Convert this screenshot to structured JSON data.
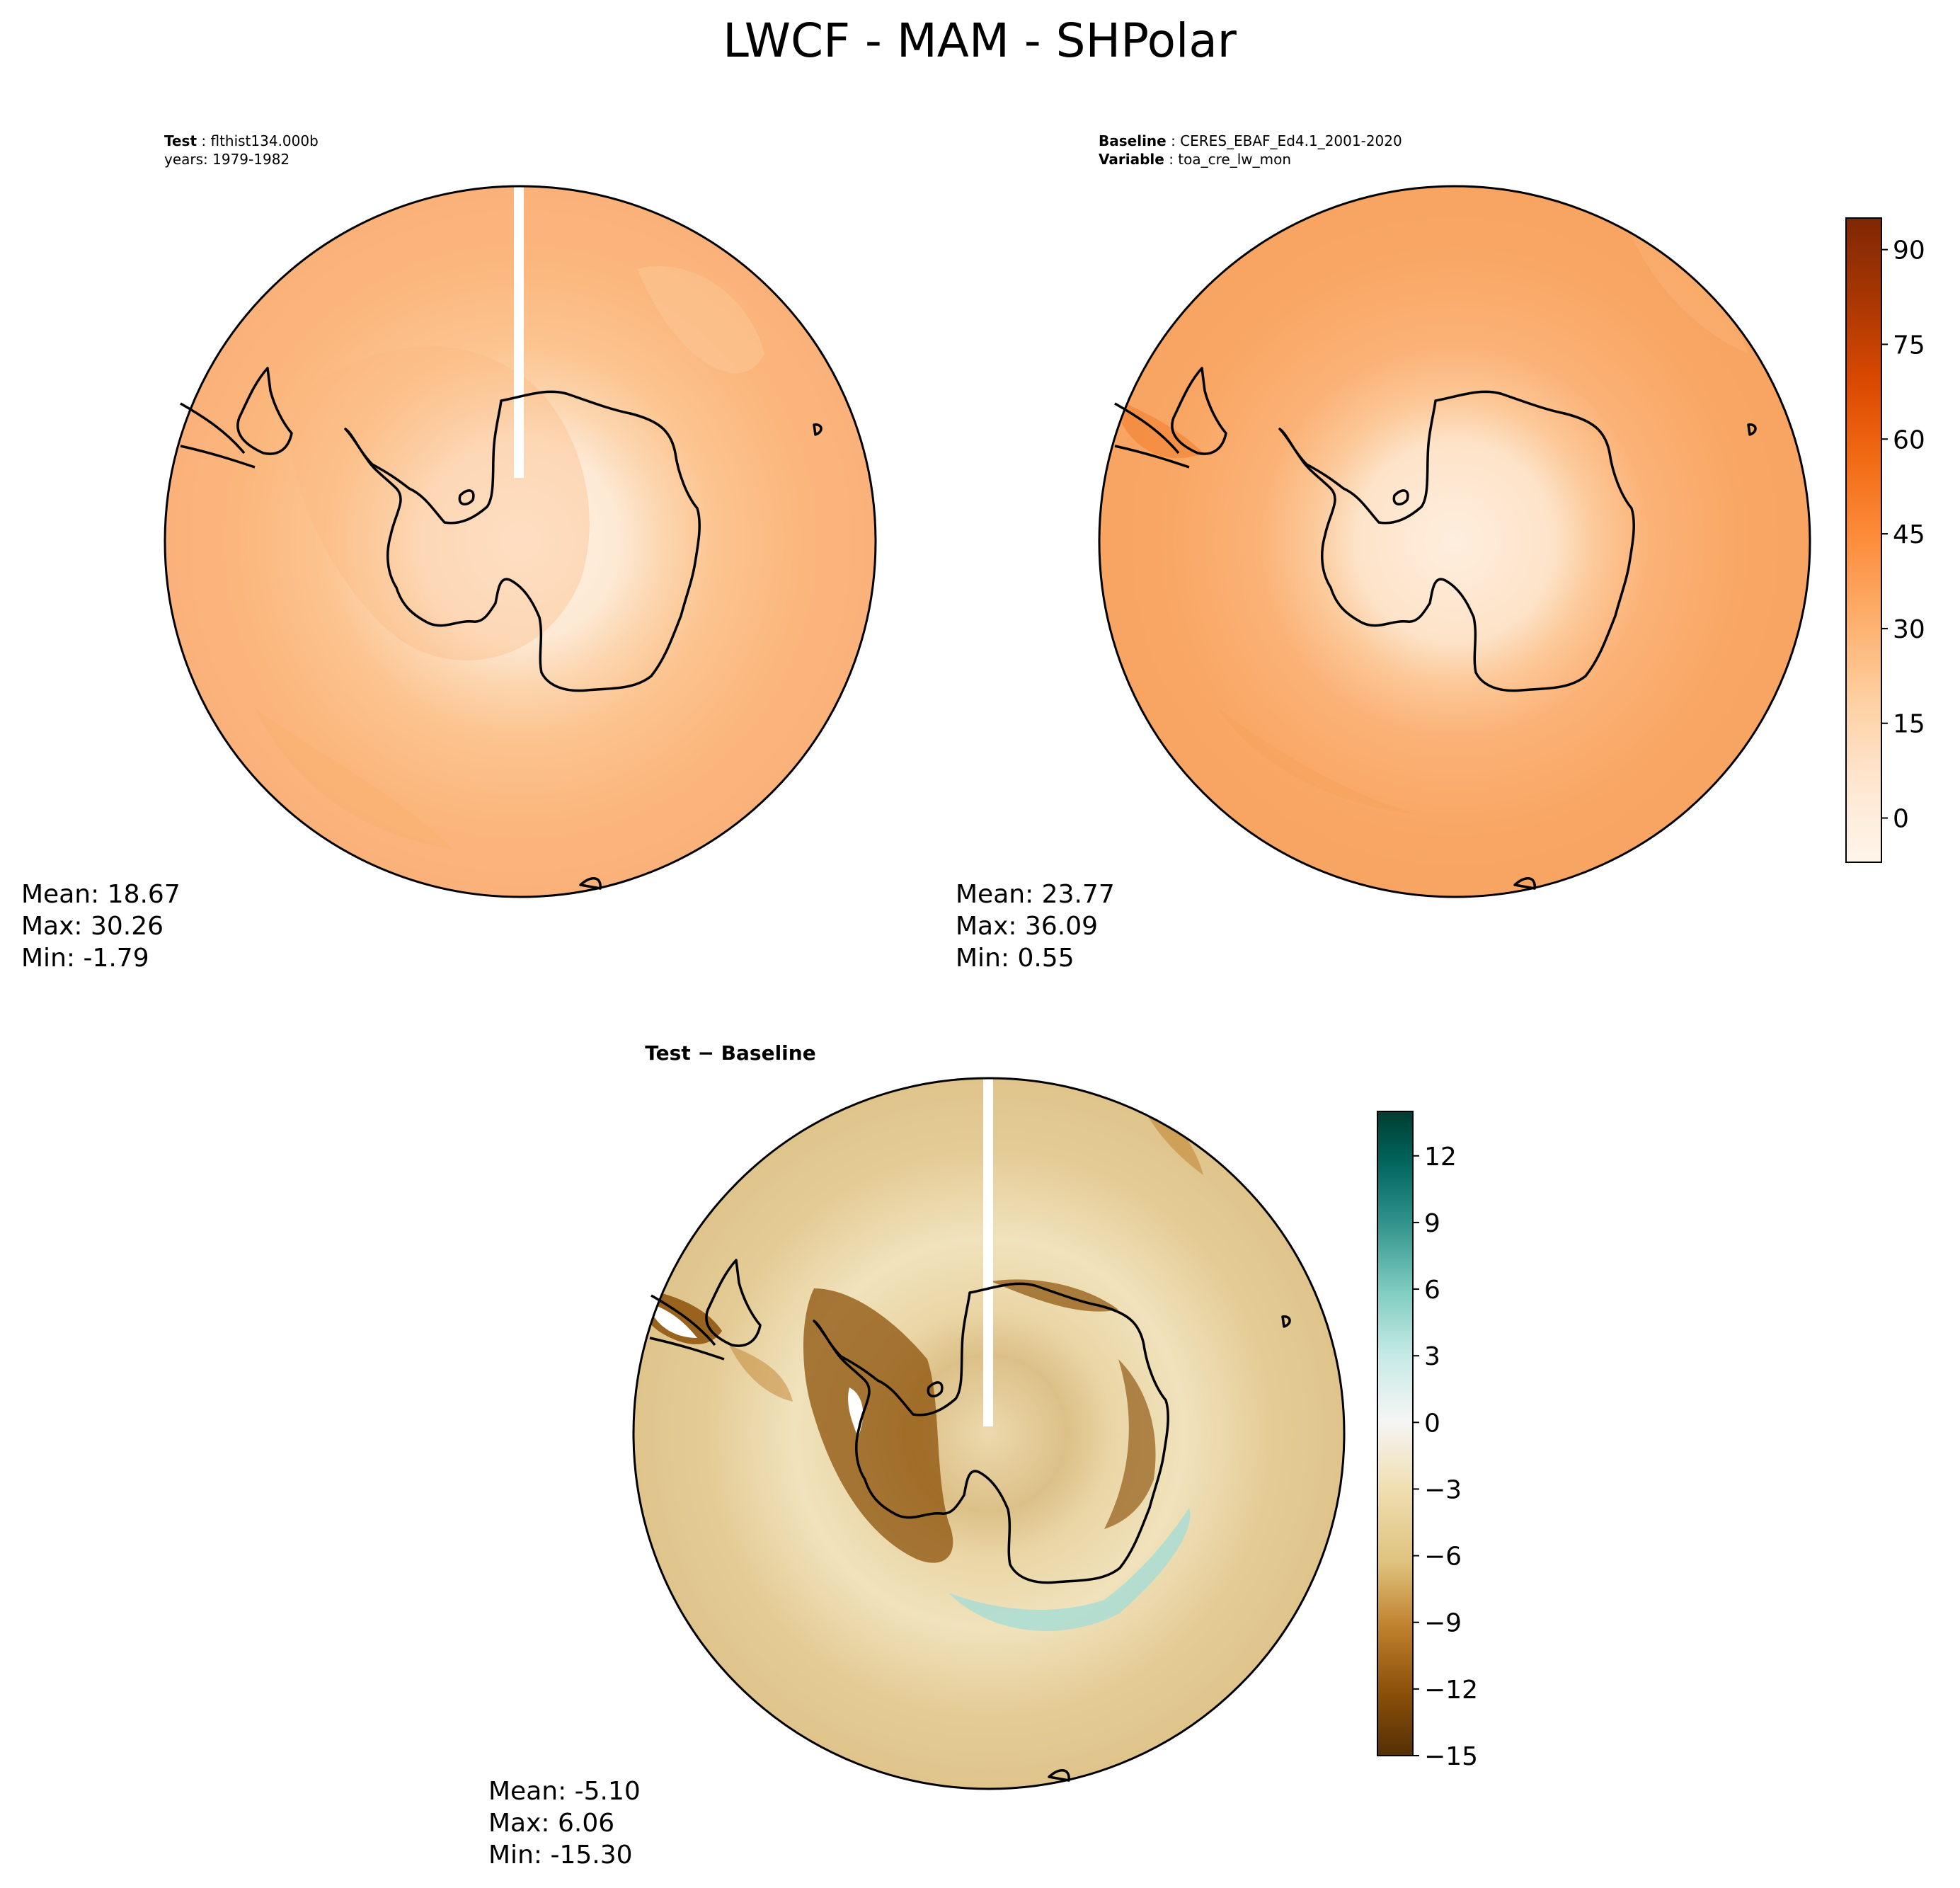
{
  "figure": {
    "title": "LWCF - MAM - SHPolar"
  },
  "chart_data": [
    {
      "type": "heatmap",
      "panel": "test",
      "projection": "south-polar-stereographic",
      "label_key": "Test",
      "label_value": "flthist134.000b",
      "subtitle": "years: 1979-1982",
      "stats": {
        "mean": "Mean: 18.67",
        "max": "Max: 30.26",
        "min": "Min: -1.79"
      },
      "field_summary": {
        "continent_interior": 2,
        "coastal_ring": 12,
        "southern_ocean": 24,
        "mid_latitudes": 27
      },
      "colormap": "Oranges",
      "colorbar_shared_with": "baseline"
    },
    {
      "type": "heatmap",
      "panel": "baseline",
      "projection": "south-polar-stereographic",
      "label_key": "Baseline",
      "label_value": "CERES_EBAF_Ed4.1_2001-2020",
      "label2_key": "Variable",
      "label2_value": "toa_cre_lw_mon",
      "stats": {
        "mean": "Mean: 23.77",
        "max": "Max: 36.09",
        "min": "Min:  0.55"
      },
      "field_summary": {
        "continent_interior": 4,
        "coastal_ring": 15,
        "southern_ocean": 30,
        "mid_latitudes": 33
      },
      "colorbar": {
        "range": [
          -7,
          95
        ],
        "ticks": [
          0,
          15,
          30,
          45,
          60,
          75,
          90
        ],
        "tick_labels": [
          "0",
          "15",
          "30",
          "45",
          "60",
          "75",
          "90"
        ],
        "colors": [
          "#fff5eb",
          "#fee6ce",
          "#fdd0a2",
          "#fdae6b",
          "#fd8d3c",
          "#f16913",
          "#d94801",
          "#a63603",
          "#7f2704"
        ]
      }
    },
    {
      "type": "heatmap",
      "panel": "difference",
      "projection": "south-polar-stereographic",
      "title": "Test − Baseline",
      "stats": {
        "mean": "Mean: -5.10",
        "max": "Max:  6.06",
        "min": "Min: -15.30"
      },
      "field_summary": {
        "east_antarctic_coast": 2,
        "west_antarctica": -12,
        "ocean_mean": -5,
        "peninsula": -14
      },
      "colorbar": {
        "range": [
          -15,
          14
        ],
        "ticks": [
          -15,
          -12,
          -9,
          -6,
          -3,
          0,
          3,
          6,
          9,
          12
        ],
        "tick_labels": [
          "−15",
          "−12",
          "−9",
          "−6",
          "−3",
          "0",
          "3",
          "6",
          "9",
          "12"
        ],
        "colors": [
          "#543005",
          "#8c510a",
          "#bf812d",
          "#dfc27d",
          "#f6e8c3",
          "#f5f5f5",
          "#c7eae5",
          "#80cdc1",
          "#35978f",
          "#01665e",
          "#003c30"
        ]
      }
    }
  ]
}
